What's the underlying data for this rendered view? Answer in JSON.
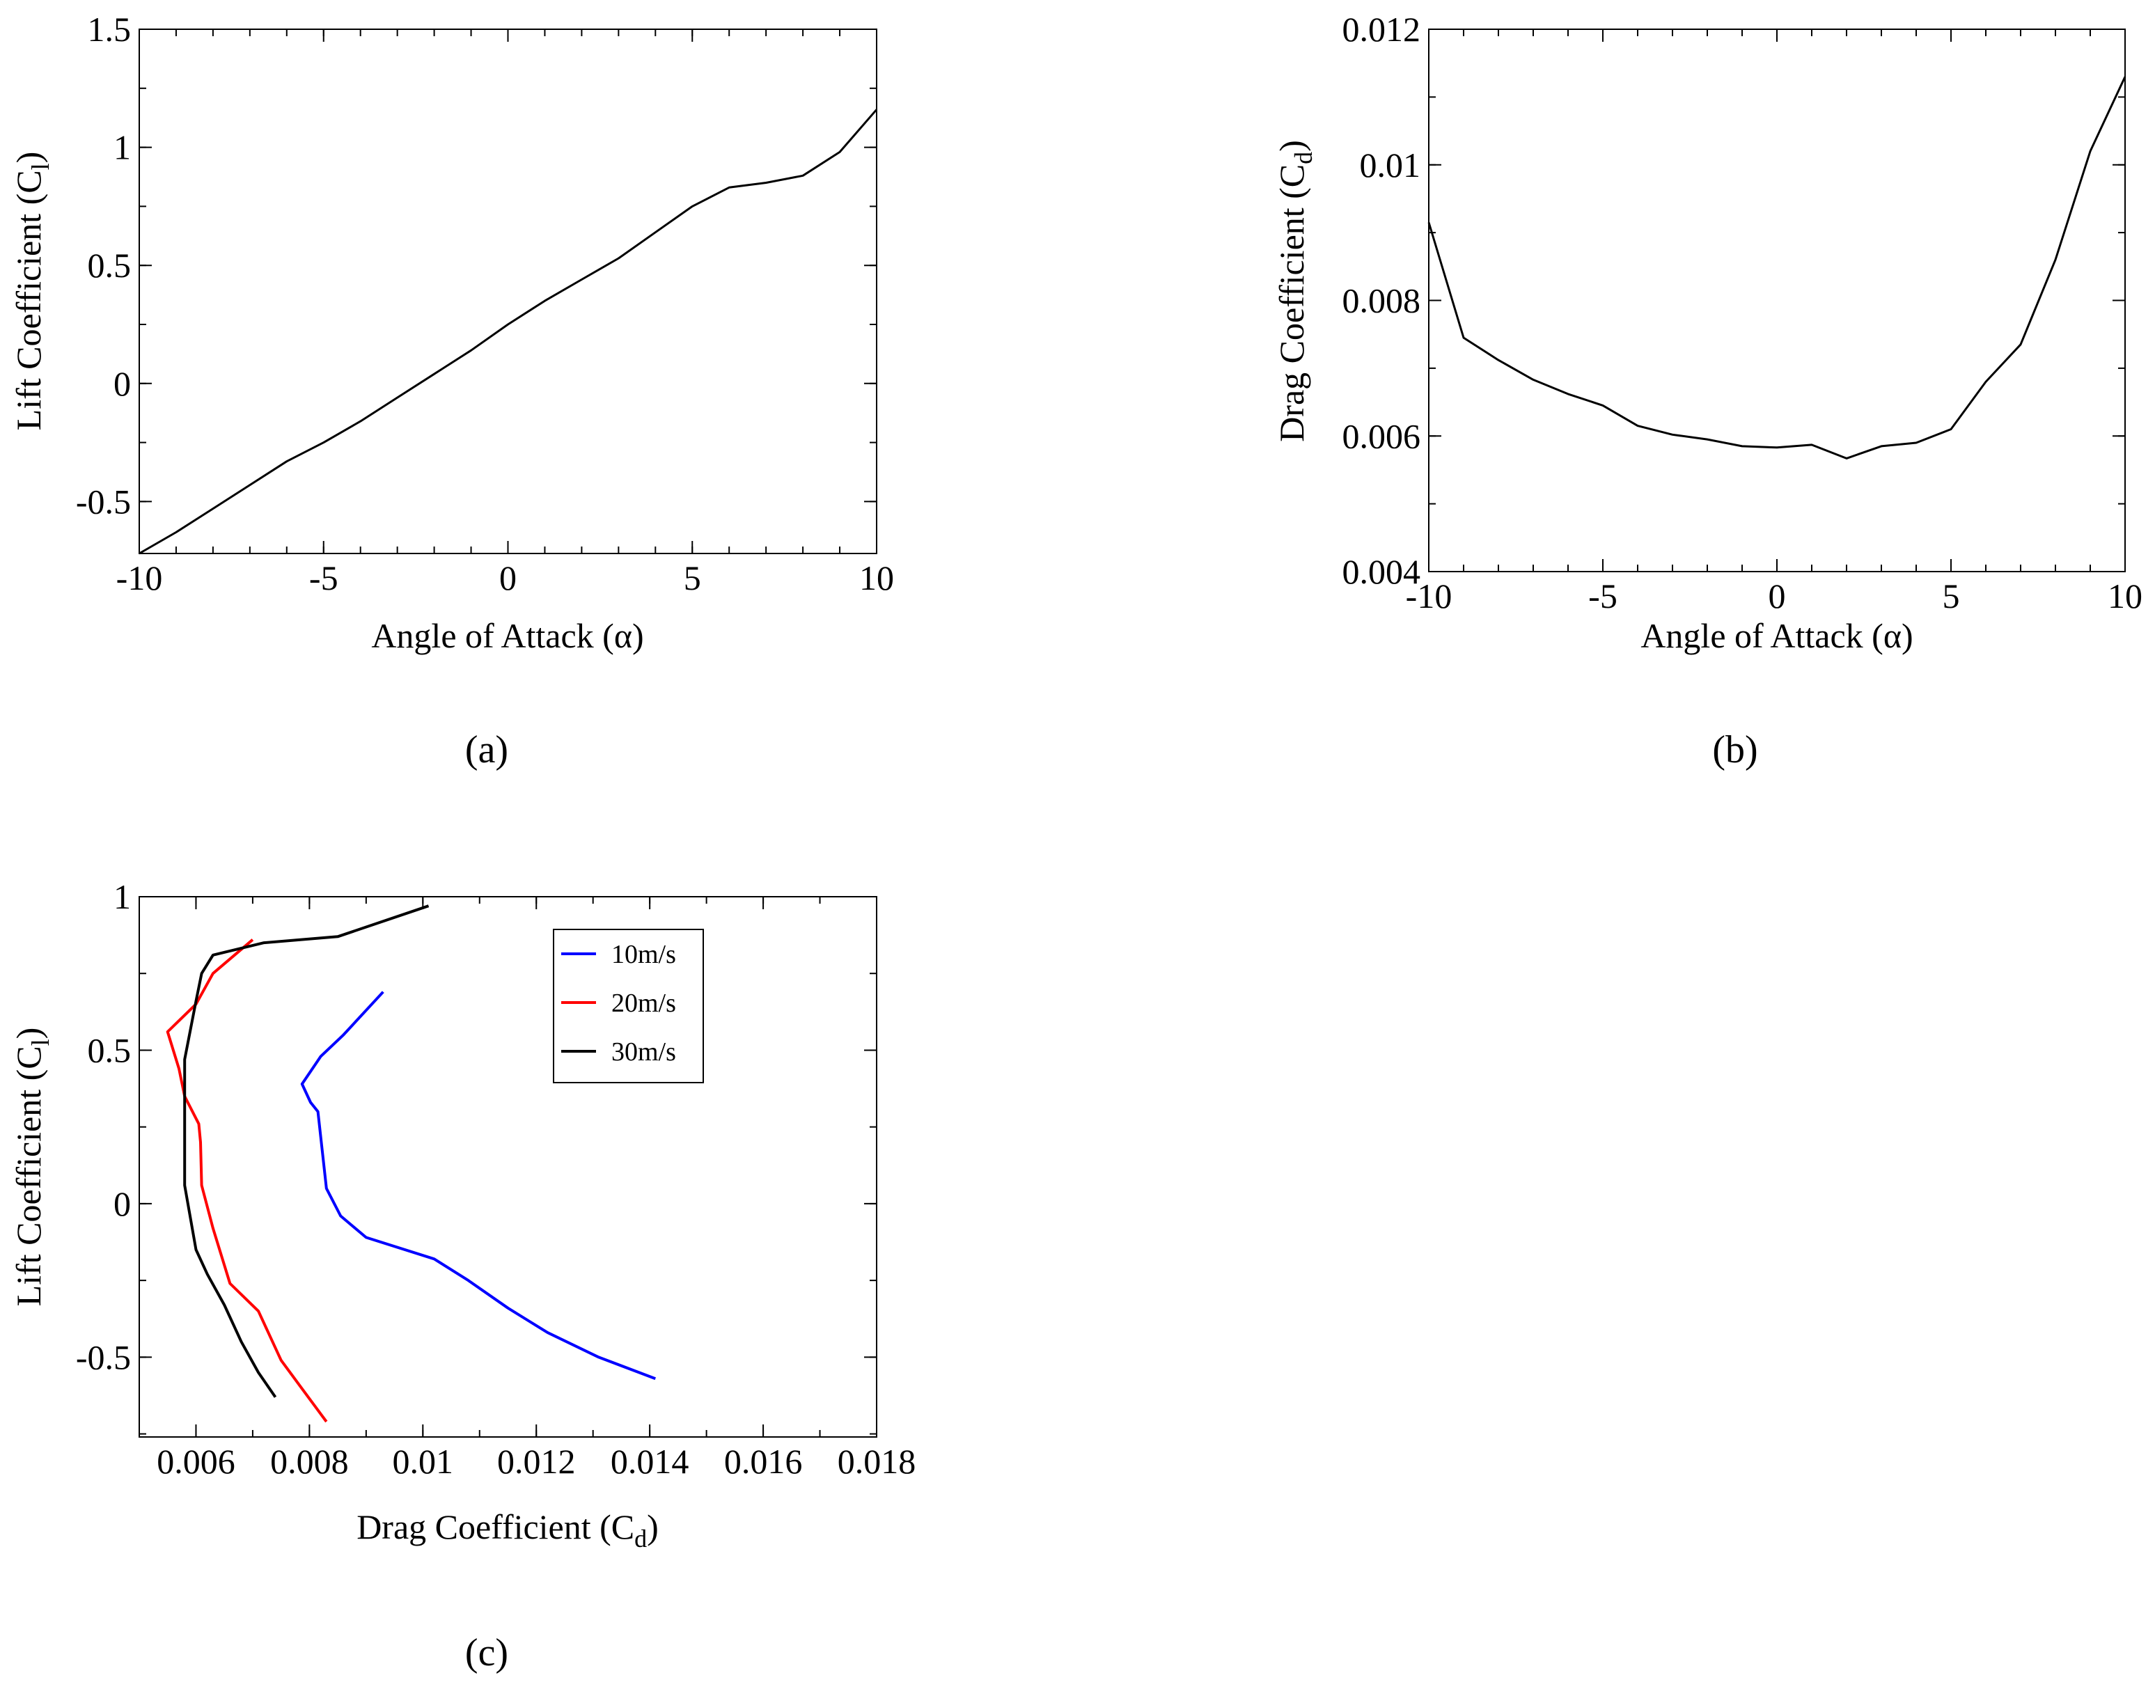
{
  "chart_data": [
    {
      "id": "a",
      "type": "line",
      "panel_label": "(a)",
      "xlabel": "Angle of Attack (α)",
      "ylabel": "Lift Coefficient (C",
      "ylabel_sub": "l",
      "ylabel_close": ")",
      "xlim": [
        -10,
        10
      ],
      "ylim": [
        -0.72,
        1.5
      ],
      "xticks": [
        -10,
        -5,
        0,
        5,
        10
      ],
      "xtick_labels": [
        "-10",
        "-5",
        "0",
        "5",
        "10"
      ],
      "yticks": [
        -0.5,
        0,
        0.5,
        1,
        1.5
      ],
      "ytick_labels": [
        "-0.5",
        "0",
        "0.5",
        "1",
        "1.5"
      ],
      "series": [
        {
          "name": "Cl",
          "color": "#000000",
          "x": [
            -10,
            -9,
            -8,
            -7,
            -6,
            -5,
            -4,
            -3,
            -2,
            -1,
            0,
            1,
            2,
            3,
            4,
            5,
            6,
            7,
            8,
            9,
            10
          ],
          "y": [
            -0.72,
            -0.63,
            -0.53,
            -0.43,
            -0.33,
            -0.25,
            -0.16,
            -0.06,
            0.04,
            0.14,
            0.25,
            0.35,
            0.44,
            0.53,
            0.64,
            0.75,
            0.83,
            0.85,
            0.88,
            0.98,
            1.16
          ]
        }
      ]
    },
    {
      "id": "b",
      "type": "line",
      "panel_label": "(b)",
      "xlabel": "Angle of Attack (α)",
      "ylabel": "Drag Coefficient (C",
      "ylabel_sub": "d",
      "ylabel_close": ")",
      "xlim": [
        -10,
        10
      ],
      "ylim": [
        0.004,
        0.012
      ],
      "xticks": [
        -10,
        -5,
        0,
        5,
        10
      ],
      "xtick_labels": [
        "-10",
        "-5",
        "0",
        "5",
        "10"
      ],
      "yticks": [
        0.004,
        0.006,
        0.008,
        0.01,
        0.012
      ],
      "ytick_labels": [
        "0.004",
        "0.006",
        "0.008",
        "0.01",
        "0.012"
      ],
      "series": [
        {
          "name": "Cd",
          "color": "#000000",
          "x": [
            -10,
            -9,
            -8,
            -7,
            -6,
            -5,
            -4,
            -3,
            -2,
            -1,
            0,
            1,
            2,
            3,
            4,
            5,
            6,
            7,
            8,
            9,
            10
          ],
          "y": [
            0.00915,
            0.00745,
            0.00712,
            0.00683,
            0.00662,
            0.00645,
            0.00615,
            0.00602,
            0.00595,
            0.00585,
            0.00583,
            0.00587,
            0.00567,
            0.00585,
            0.0059,
            0.0061,
            0.0068,
            0.00735,
            0.0086,
            0.0102,
            0.0113
          ]
        }
      ]
    },
    {
      "id": "c",
      "type": "line",
      "panel_label": "(c)",
      "xlabel": "Drag Coefficient (C",
      "xlabel_sub": "d",
      "xlabel_close": ")",
      "ylabel": "Lift Coefficient (C",
      "ylabel_sub": "l",
      "ylabel_close": ")",
      "xlim": [
        0.005,
        0.018
      ],
      "ylim": [
        -0.76,
        1.0
      ],
      "xticks": [
        0.006,
        0.008,
        0.01,
        0.012,
        0.014,
        0.016,
        0.018
      ],
      "xtick_labels": [
        "0.006",
        "0.008",
        "0.01",
        "0.012",
        "0.014",
        "0.016",
        "0.018"
      ],
      "yticks": [
        -0.5,
        0,
        0.5,
        1
      ],
      "ytick_labels": [
        "-0.5",
        "0",
        "0.5",
        "1"
      ],
      "legend": {
        "position": "top-right",
        "entries": [
          "10m/s",
          "20m/s",
          "30m/s"
        ]
      },
      "series": [
        {
          "name": "10m/s",
          "color": "#0000ff",
          "x": [
            0.0141,
            0.0131,
            0.0122,
            0.0115,
            0.0108,
            0.0102,
            0.009,
            0.00855,
            0.0083,
            0.00815,
            0.00802,
            0.00787,
            0.0082,
            0.0086,
            0.0093
          ],
          "y": [
            -0.57,
            -0.5,
            -0.42,
            -0.34,
            -0.25,
            -0.18,
            -0.11,
            -0.04,
            0.05,
            0.3,
            0.33,
            0.39,
            0.48,
            0.55,
            0.69
          ]
        },
        {
          "name": "20m/s",
          "color": "#ff0000",
          "x": [
            0.0083,
            0.0079,
            0.0075,
            0.0071,
            0.0066,
            0.0063,
            0.0061,
            0.00608,
            0.00605,
            0.0058,
            0.0057,
            0.0055,
            0.006,
            0.0063,
            0.007
          ],
          "y": [
            -0.71,
            -0.61,
            -0.51,
            -0.35,
            -0.26,
            -0.08,
            0.06,
            0.2,
            0.26,
            0.35,
            0.44,
            0.56,
            0.65,
            0.75,
            0.86
          ]
        },
        {
          "name": "30m/s",
          "color": "#000000",
          "x": [
            0.0074,
            0.0071,
            0.0068,
            0.0065,
            0.0062,
            0.006,
            0.0058,
            0.0058,
            0.0058,
            0.0058,
            0.0058,
            0.006,
            0.0061,
            0.0063,
            0.0072,
            0.0085,
            0.0101
          ],
          "y": [
            -0.63,
            -0.55,
            -0.45,
            -0.33,
            -0.23,
            -0.15,
            0.06,
            0.14,
            0.25,
            0.37,
            0.47,
            0.66,
            0.75,
            0.81,
            0.85,
            0.87,
            0.97
          ]
        }
      ]
    }
  ]
}
